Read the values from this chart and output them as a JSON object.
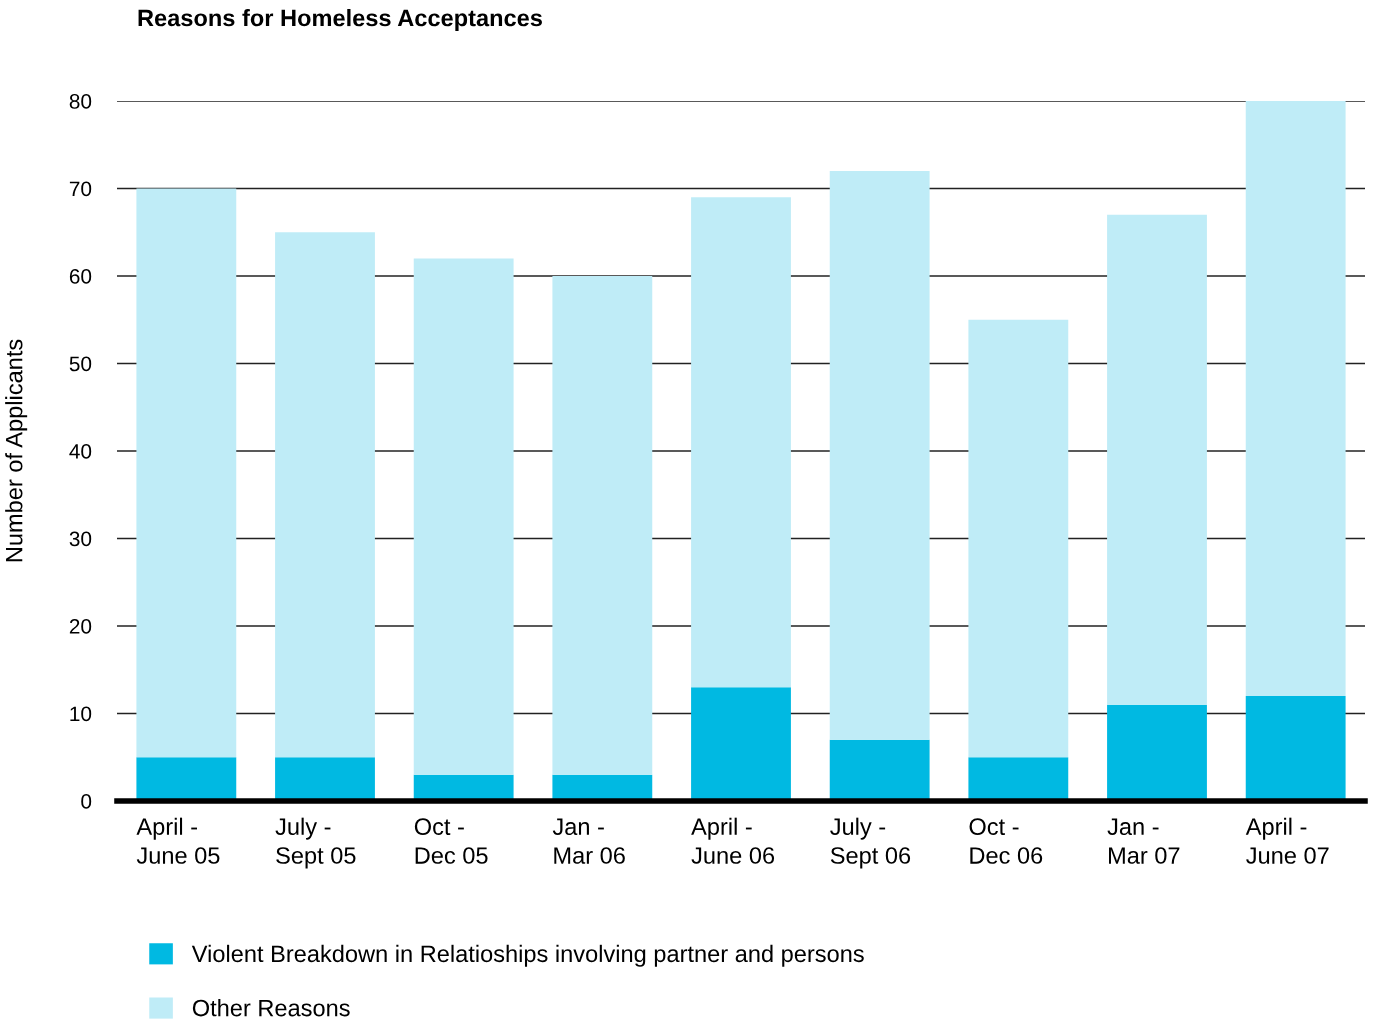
{
  "chart_data": {
    "type": "bar",
    "title": "Reasons for Homeless Acceptances",
    "ylabel": "Number of Applicants",
    "categories": [
      "April -\nJune 05",
      "July -\nSept 05",
      "Oct -\nDec 05",
      "Jan -\nMar 06",
      "April -\nJune 06",
      "July -\nSept 06",
      "Oct -\nDec 06",
      "Jan -\nMar 07",
      "April -\nJune 07"
    ],
    "stacked": true,
    "series": [
      {
        "name": "Violent Breakdown in Relatioships involving partner and persons",
        "color": "#00b9e2",
        "values": [
          5,
          5,
          3,
          3,
          13,
          7,
          5,
          11,
          12
        ]
      },
      {
        "name": "Other Reasons",
        "color": "#bfecf7",
        "values": [
          65,
          60,
          59,
          57,
          56,
          65,
          50,
          56,
          68
        ]
      }
    ],
    "ylim": [
      0,
      80
    ],
    "yticks": [
      0,
      10,
      20,
      30,
      40,
      50,
      60,
      70,
      80
    ],
    "grid": "y",
    "legend": "bottom"
  }
}
